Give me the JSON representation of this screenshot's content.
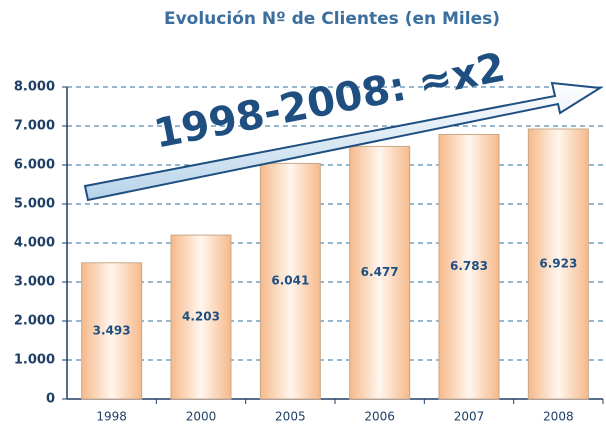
{
  "chart_data": {
    "type": "bar",
    "title": "Evolución Nº de Clientes (en Miles)",
    "annotation": "1998-2008: ≈x2",
    "categories": [
      "1998",
      "2000",
      "2005",
      "2006",
      "2007",
      "2008"
    ],
    "values": [
      3493,
      4203,
      6041,
      6477,
      6783,
      6923
    ],
    "value_labels": [
      "3.493",
      "4.203",
      "6.041",
      "6.477",
      "6.783",
      "6.923"
    ],
    "color": "#f9c9a0",
    "ylim": [
      0,
      8000
    ],
    "yticks": [
      {
        "value": 0,
        "label": "0"
      },
      {
        "value": 1000,
        "label": "1.000"
      },
      {
        "value": 2000,
        "label": "2.000"
      },
      {
        "value": 3000,
        "label": "3.000"
      },
      {
        "value": 4000,
        "label": "4.000"
      },
      {
        "value": 5000,
        "label": "5.000"
      },
      {
        "value": 6000,
        "label": "6.000"
      },
      {
        "value": 7000,
        "label": "7.000"
      },
      {
        "value": 8000,
        "label": "8.000"
      }
    ],
    "grid": true
  }
}
